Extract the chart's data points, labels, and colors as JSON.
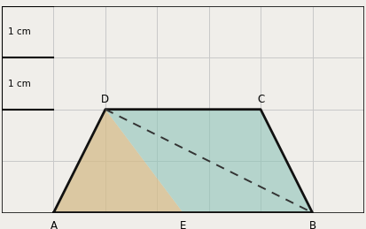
{
  "grid_cols": 7,
  "grid_rows": 4,
  "cell_size": 1,
  "A": [
    1,
    0
  ],
  "B": [
    6,
    0
  ],
  "C": [
    5,
    2
  ],
  "D": [
    2,
    2
  ],
  "E": [
    3.5,
    0
  ],
  "triangle_ADE_color": "#d4bc8a",
  "triangle_ADE_alpha": 0.75,
  "quad_DCBE_color": "#8fc4b8",
  "quad_DCBE_alpha": 0.6,
  "grid_color": "#c8c8c8",
  "outline_color": "#111111",
  "dashed_color": "#333333",
  "border_color": "#111111",
  "label_A": "A",
  "label_B": "B",
  "label_C": "C",
  "label_D": "D",
  "label_E": "E",
  "scale_label_v": "1 cm",
  "scale_label_h": "1 cm",
  "font_size": 8.5,
  "background_color": "#f0eeea",
  "figsize": [
    4.13,
    2.59
  ],
  "dpi": 100
}
